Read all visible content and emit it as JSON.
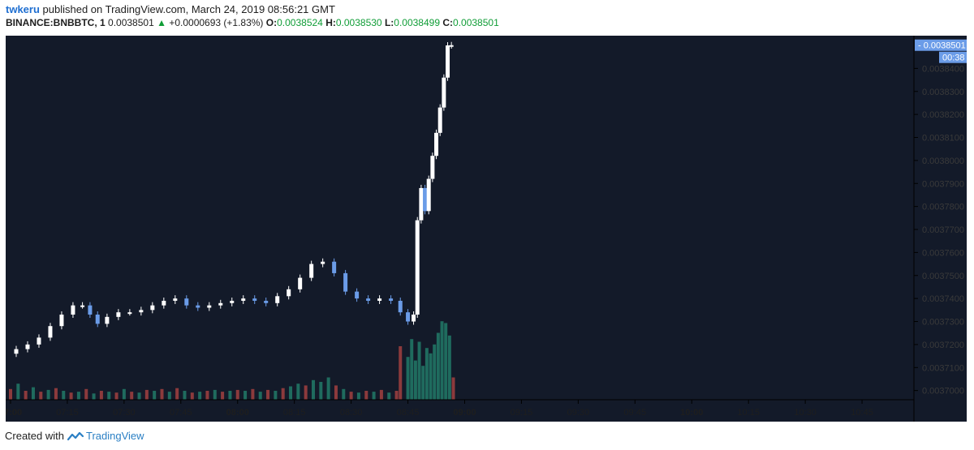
{
  "header": {
    "user": "twkeru",
    "published_text": "published on TradingView.com, March 24, 2019 08:56:21 GMT",
    "symbol": "BINANCE:BNBBTC, 1",
    "price": "0.0038501",
    "change": "+0.0000693 (+1.83%)",
    "o_label": "O:",
    "o_value": "0.0038524",
    "h_label": "H:",
    "h_value": "0.0038530",
    "l_label": "L:",
    "l_value": "0.0038499",
    "c_label": "C:",
    "c_value": "0.0038501"
  },
  "footer": {
    "created_with": "Created with",
    "brand": "TradingView"
  },
  "chart_data": {
    "type": "candlestick",
    "colors": {
      "background": "#131a29",
      "up_candle": "#ffffff",
      "down_candle": "#6b9ce8",
      "volume_up": "#1f6b5e",
      "volume_down": "#8c3a3c",
      "price_label_bg": "#6b9ce8"
    },
    "x_ticks": [
      "07:00",
      "07:15",
      "07:30",
      "07:45",
      "08:00",
      "08:15",
      "08:30",
      "08:45",
      "09:00",
      "09:15",
      "09:30",
      "09:45",
      "10:00",
      "10:15",
      "10:30",
      "10:45"
    ],
    "x_ticks_bold": [
      "07:00",
      "08:00",
      "09:00",
      "10:00"
    ],
    "y_ticks": [
      "0.0037000",
      "0.0037100",
      "0.0037200",
      "0.0037300",
      "0.0037400",
      "0.0037500",
      "0.0037600",
      "0.0037700",
      "0.0037800",
      "0.0037900",
      "0.0038000",
      "0.0038100",
      "0.0038200",
      "0.0038300",
      "0.0038400"
    ],
    "ylim": [
      0.003696,
      0.00385
    ],
    "last_price_label": "0.0038501",
    "countdown_label": "00:38",
    "grid": false,
    "price_path": [
      [
        "07:00",
        0.003716
      ],
      [
        "07:03",
        0.003718
      ],
      [
        "07:06",
        0.00372
      ],
      [
        "07:09",
        0.003723
      ],
      [
        "07:12",
        0.003728
      ],
      [
        "07:15",
        0.003733
      ],
      [
        "07:18",
        0.003737
      ],
      [
        "07:20",
        0.003737
      ],
      [
        "07:22",
        0.003733
      ],
      [
        "07:24",
        0.003729
      ],
      [
        "07:27",
        0.003732
      ],
      [
        "07:30",
        0.003734
      ],
      [
        "07:33",
        0.003734
      ],
      [
        "07:36",
        0.003735
      ],
      [
        "07:39",
        0.003737
      ],
      [
        "07:42",
        0.003739
      ],
      [
        "07:45",
        0.00374
      ],
      [
        "07:48",
        0.003737
      ],
      [
        "07:51",
        0.003736
      ],
      [
        "07:54",
        0.003737
      ],
      [
        "07:57",
        0.003738
      ],
      [
        "08:00",
        0.003739
      ],
      [
        "08:03",
        0.00374
      ],
      [
        "08:06",
        0.003739
      ],
      [
        "08:09",
        0.003738
      ],
      [
        "08:12",
        0.003741
      ],
      [
        "08:15",
        0.003744
      ],
      [
        "08:18",
        0.003749
      ],
      [
        "08:21",
        0.003755
      ],
      [
        "08:24",
        0.003756
      ],
      [
        "08:27",
        0.003751
      ],
      [
        "08:30",
        0.003743
      ],
      [
        "08:33",
        0.00374
      ],
      [
        "08:36",
        0.003739
      ],
      [
        "08:39",
        0.00374
      ],
      [
        "08:42",
        0.003739
      ],
      [
        "08:44",
        0.003734
      ],
      [
        "08:46",
        0.00373
      ],
      [
        "08:47",
        0.003733
      ],
      [
        "08:48",
        0.003774
      ],
      [
        "08:49",
        0.003788
      ],
      [
        "08:50",
        0.003778
      ],
      [
        "08:51",
        0.003792
      ],
      [
        "08:52",
        0.003802
      ],
      [
        "08:53",
        0.003812
      ],
      [
        "08:54",
        0.003823
      ],
      [
        "08:55",
        0.003836
      ],
      [
        "08:56",
        0.00385
      ],
      [
        "08:57",
        0.0038501
      ]
    ],
    "volume": [
      [
        "07:00",
        12,
        "down"
      ],
      [
        "07:02",
        18,
        "up"
      ],
      [
        "07:04",
        10,
        "down"
      ],
      [
        "07:06",
        14,
        "up"
      ],
      [
        "07:08",
        9,
        "down"
      ],
      [
        "07:10",
        11,
        "up"
      ],
      [
        "07:12",
        13,
        "down"
      ],
      [
        "07:14",
        10,
        "up"
      ],
      [
        "07:16",
        8,
        "down"
      ],
      [
        "07:18",
        9,
        "up"
      ],
      [
        "07:20",
        12,
        "down"
      ],
      [
        "07:22",
        7,
        "up"
      ],
      [
        "07:24",
        10,
        "down"
      ],
      [
        "07:26",
        9,
        "up"
      ],
      [
        "07:28",
        8,
        "down"
      ],
      [
        "07:30",
        12,
        "up"
      ],
      [
        "07:32",
        9,
        "down"
      ],
      [
        "07:34",
        8,
        "up"
      ],
      [
        "07:36",
        11,
        "down"
      ],
      [
        "07:38",
        10,
        "up"
      ],
      [
        "07:40",
        12,
        "down"
      ],
      [
        "07:42",
        9,
        "up"
      ],
      [
        "07:44",
        13,
        "down"
      ],
      [
        "07:46",
        10,
        "up"
      ],
      [
        "07:48",
        8,
        "down"
      ],
      [
        "07:50",
        9,
        "up"
      ],
      [
        "07:52",
        10,
        "down"
      ],
      [
        "07:54",
        11,
        "up"
      ],
      [
        "07:56",
        9,
        "down"
      ],
      [
        "07:58",
        10,
        "up"
      ],
      [
        "08:00",
        11,
        "down"
      ],
      [
        "08:02",
        10,
        "up"
      ],
      [
        "08:04",
        12,
        "down"
      ],
      [
        "08:06",
        9,
        "up"
      ],
      [
        "08:08",
        11,
        "down"
      ],
      [
        "08:10",
        10,
        "up"
      ],
      [
        "08:12",
        13,
        "down"
      ],
      [
        "08:14",
        15,
        "up"
      ],
      [
        "08:16",
        18,
        "up"
      ],
      [
        "08:18",
        16,
        "down"
      ],
      [
        "08:20",
        22,
        "up"
      ],
      [
        "08:22",
        20,
        "up"
      ],
      [
        "08:24",
        25,
        "up"
      ],
      [
        "08:26",
        16,
        "down"
      ],
      [
        "08:28",
        12,
        "up"
      ],
      [
        "08:30",
        9,
        "down"
      ],
      [
        "08:32",
        8,
        "up"
      ],
      [
        "08:34",
        10,
        "down"
      ],
      [
        "08:36",
        9,
        "up"
      ],
      [
        "08:38",
        11,
        "down"
      ],
      [
        "08:40",
        8,
        "up"
      ],
      [
        "08:42",
        10,
        "down"
      ],
      [
        "08:43",
        60,
        "down"
      ],
      [
        "08:45",
        48,
        "up"
      ],
      [
        "08:46",
        68,
        "up"
      ],
      [
        "08:47",
        44,
        "up"
      ],
      [
        "08:48",
        65,
        "up"
      ],
      [
        "08:49",
        38,
        "up"
      ],
      [
        "08:50",
        58,
        "up"
      ],
      [
        "08:51",
        52,
        "up"
      ],
      [
        "08:52",
        62,
        "up"
      ],
      [
        "08:53",
        75,
        "up"
      ],
      [
        "08:54",
        88,
        "up"
      ],
      [
        "08:55",
        86,
        "up"
      ],
      [
        "08:56",
        72,
        "up"
      ],
      [
        "08:57",
        25,
        "down"
      ]
    ]
  }
}
